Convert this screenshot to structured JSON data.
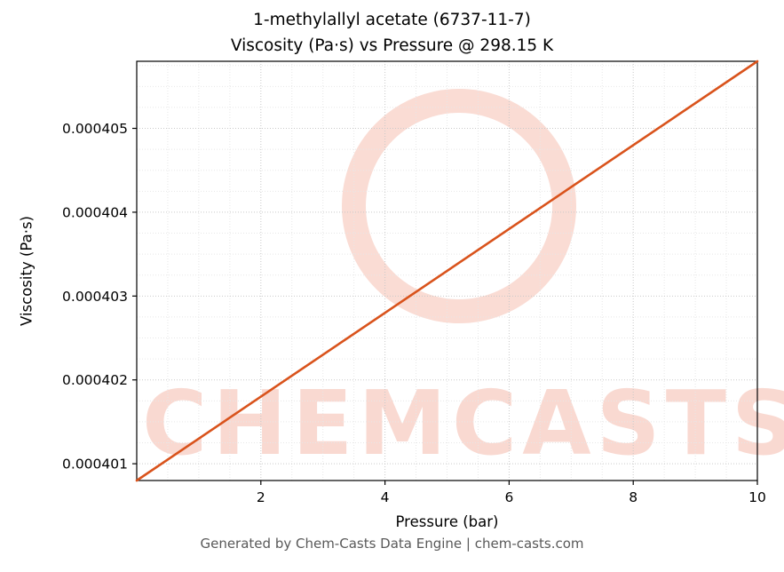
{
  "title_line1": "1-methylallyl acetate (6737-11-7)",
  "title_line2": "Viscosity (Pa·s) vs Pressure @ 298.15 K",
  "watermark": {
    "text": "CHEMCASTS"
  },
  "footer": {
    "text": "Generated by Chem-Casts Data Engine | chem-casts.com"
  },
  "colors": {
    "line": "#d9531c",
    "watermark": "#ef8a72",
    "grid_major": "#c9c9c9",
    "grid_minor": "#e7e7e7",
    "axis": "#000000",
    "footer_text": "#595959"
  },
  "chart_data": {
    "type": "line",
    "title_lines": [
      "1-methylallyl acetate (6737-11-7)",
      "Viscosity (Pa·s) vs Pressure @ 298.15 K"
    ],
    "xlabel": "Pressure (bar)",
    "ylabel": "Viscosity (Pa·s)",
    "xlim": [
      0,
      10
    ],
    "ylim": [
      0.0004008,
      0.0004058
    ],
    "x_ticks": [
      2,
      4,
      6,
      8,
      10
    ],
    "x_tick_labels": [
      "2",
      "4",
      "6",
      "8",
      "10"
    ],
    "y_ticks": [
      0.000401,
      0.000402,
      0.000403,
      0.000404,
      0.000405
    ],
    "y_tick_labels": [
      "0.000401",
      "0.000402",
      "0.000403",
      "0.000404",
      "0.000405"
    ],
    "x_minor_step": 0.5,
    "y_minor_step": 2.5e-07,
    "grid": true,
    "legend": "none",
    "series": [
      {
        "name": "viscosity-vs-pressure",
        "x": [
          0,
          10
        ],
        "y": [
          0.0004008,
          0.0004058
        ]
      }
    ]
  }
}
